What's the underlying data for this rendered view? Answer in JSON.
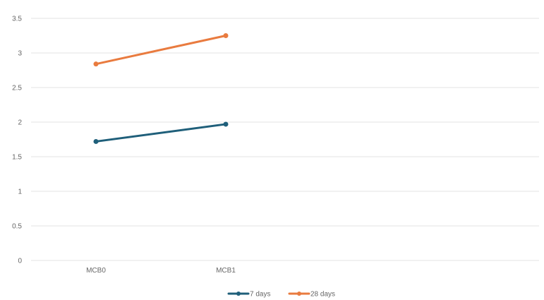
{
  "chart_data": {
    "type": "line",
    "categories": [
      "MCB0",
      "MCB1"
    ],
    "series": [
      {
        "name": "7 days",
        "values": [
          1.72,
          1.97
        ],
        "color": "#1f5f7a"
      },
      {
        "name": "28 days",
        "values": [
          2.84,
          3.25
        ],
        "color": "#e97b3f"
      }
    ],
    "title": "",
    "xlabel": "",
    "ylabel": "",
    "ylim": [
      0,
      3.5
    ],
    "yticks": [
      "0",
      "0.5",
      "1",
      "1.5",
      "2",
      "2.5",
      "3",
      "3.5"
    ],
    "grid": true,
    "legend_position": "bottom-center"
  }
}
